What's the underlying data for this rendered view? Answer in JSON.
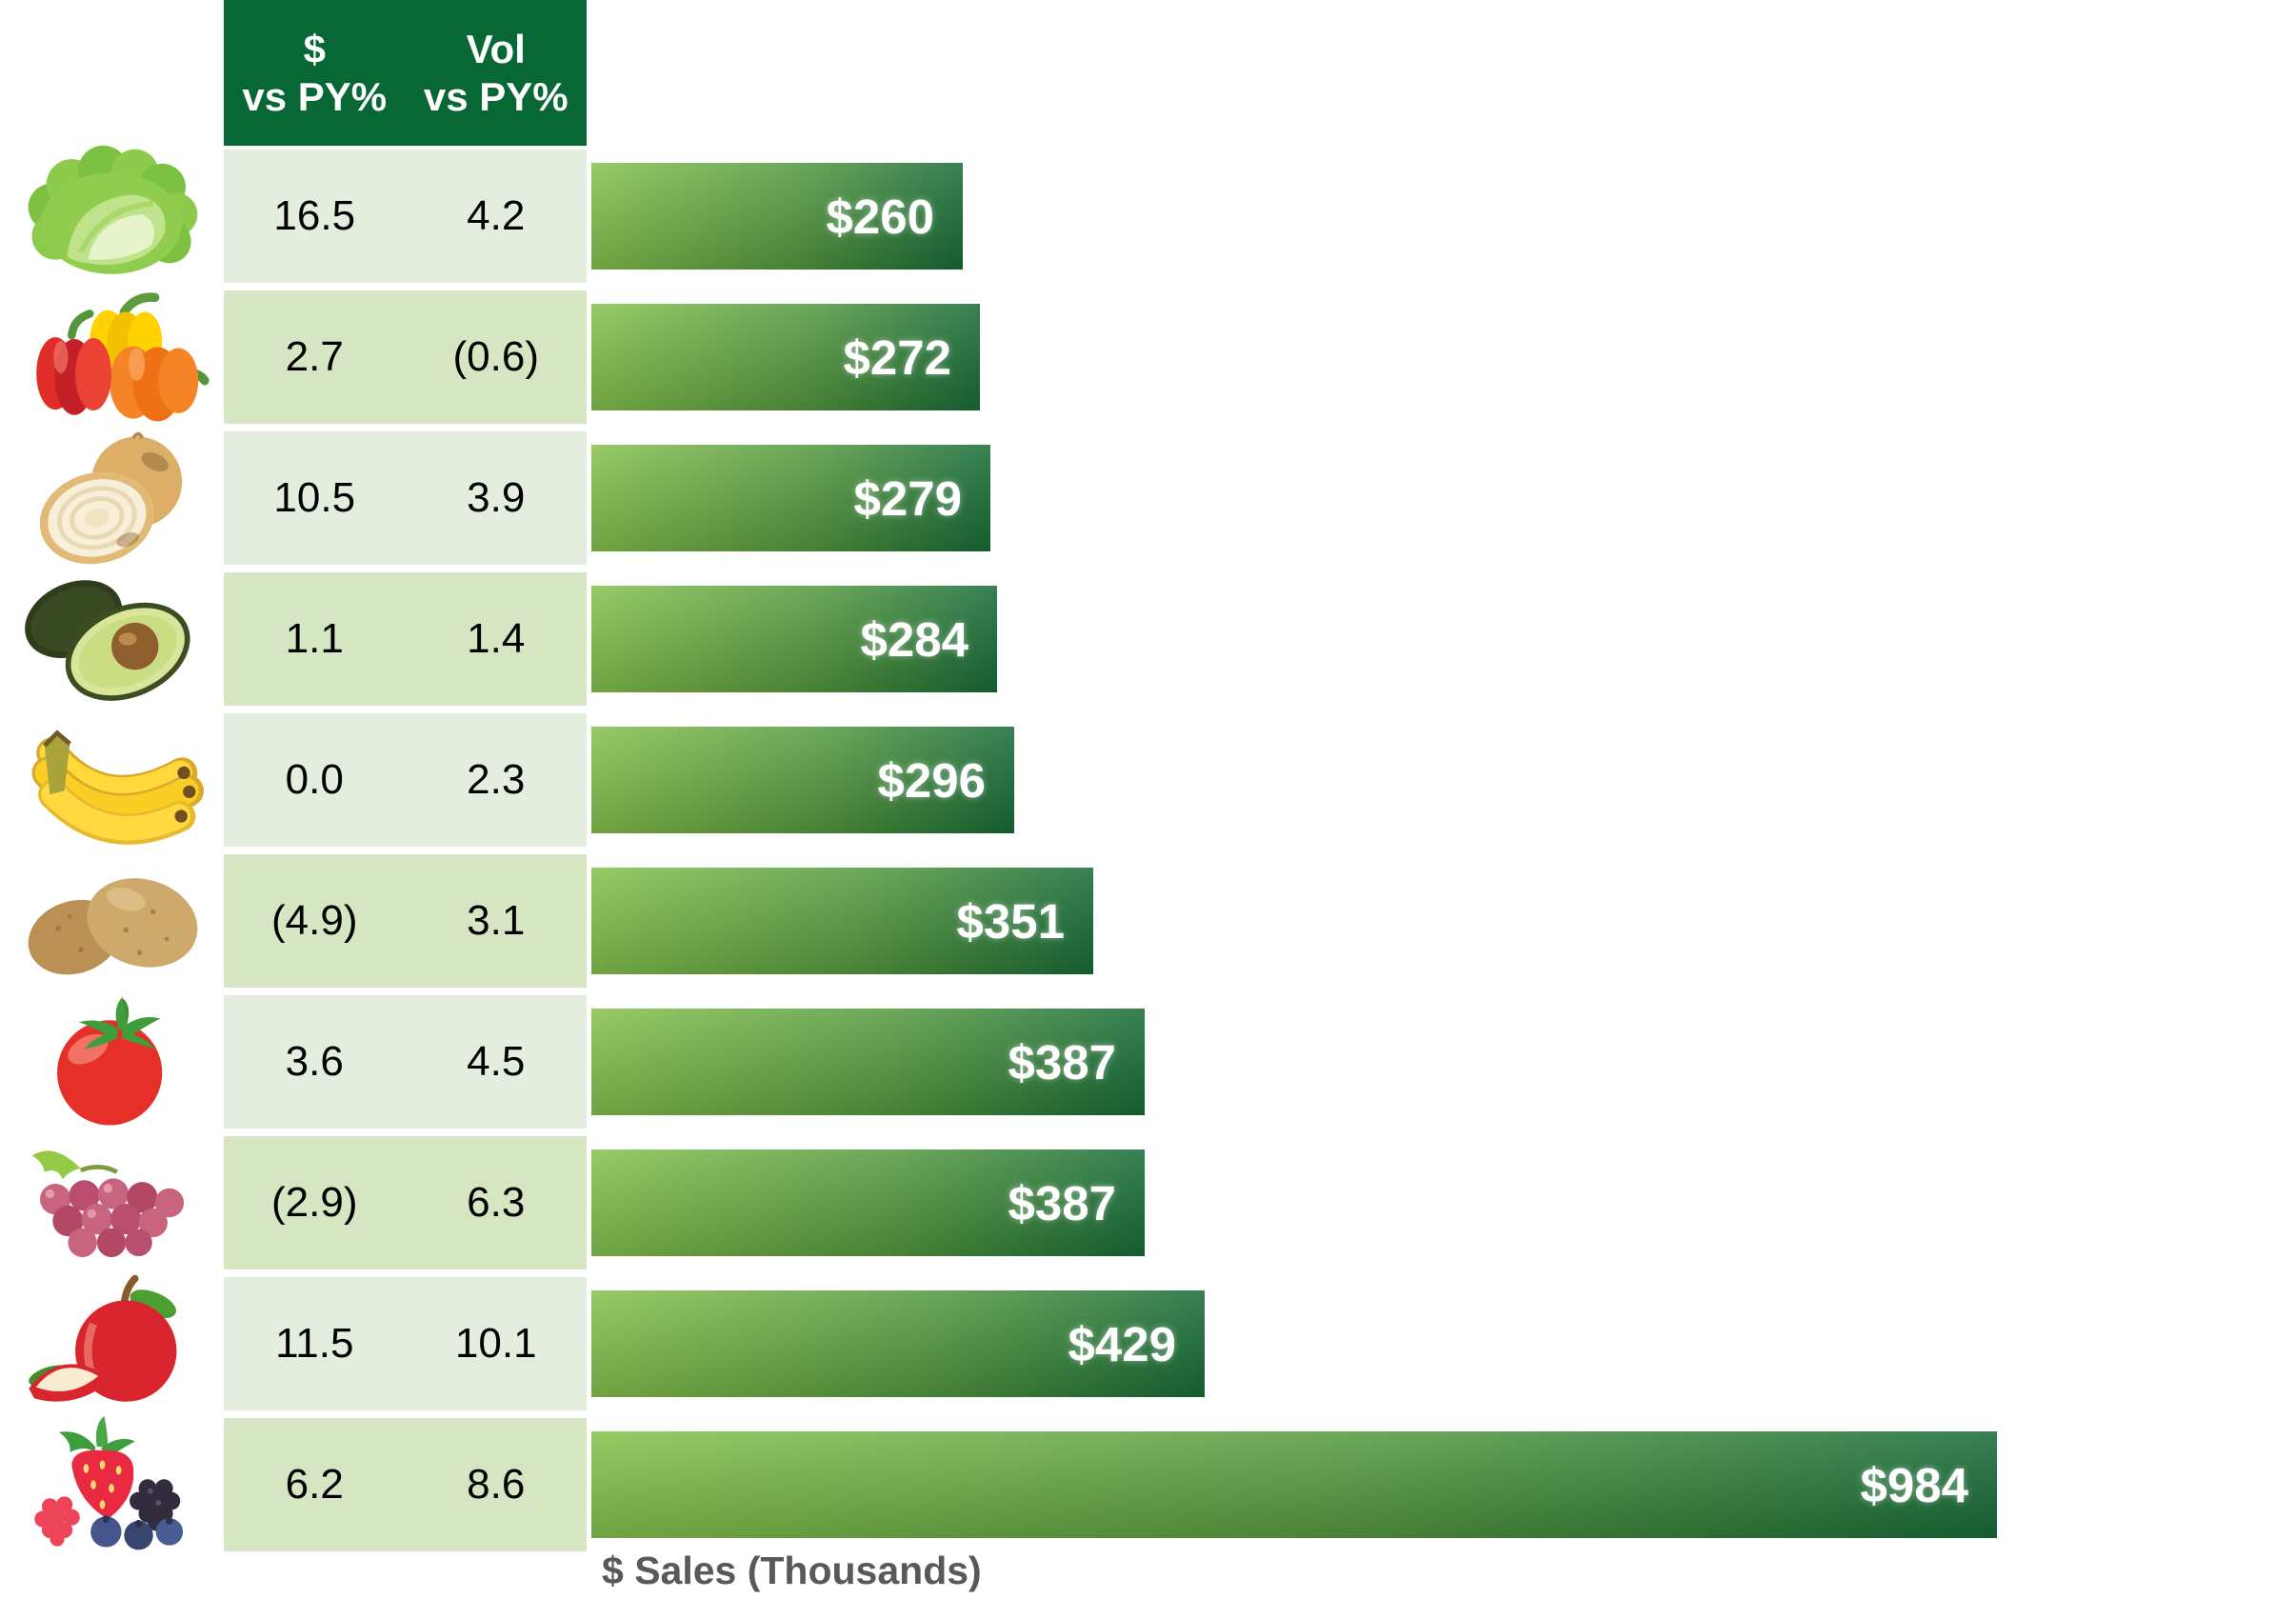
{
  "header": {
    "col1_line1": "$",
    "col1_line2": "vs PY%",
    "col2_line1": "Vol",
    "col2_line2": "vs PY%"
  },
  "axis": {
    "xlabel": "$ Sales (Thousands)"
  },
  "rows": [
    {
      "item": "lettuce",
      "icon": "lettuce-icon",
      "dollar_vs_py": "16.5",
      "vol_vs_py": "4.2",
      "sales": 260,
      "sales_label": "$260"
    },
    {
      "item": "bell-peppers",
      "icon": "bell-peppers-icon",
      "dollar_vs_py": "2.7",
      "vol_vs_py": "(0.6)",
      "sales": 272,
      "sales_label": "$272"
    },
    {
      "item": "onion",
      "icon": "onion-icon",
      "dollar_vs_py": "10.5",
      "vol_vs_py": "3.9",
      "sales": 279,
      "sales_label": "$279"
    },
    {
      "item": "avocado",
      "icon": "avocado-icon",
      "dollar_vs_py": "1.1",
      "vol_vs_py": "1.4",
      "sales": 284,
      "sales_label": "$284"
    },
    {
      "item": "bananas",
      "icon": "bananas-icon",
      "dollar_vs_py": "0.0",
      "vol_vs_py": "2.3",
      "sales": 296,
      "sales_label": "$296"
    },
    {
      "item": "potatoes",
      "icon": "potatoes-icon",
      "dollar_vs_py": "(4.9)",
      "vol_vs_py": "3.1",
      "sales": 351,
      "sales_label": "$351"
    },
    {
      "item": "tomato",
      "icon": "tomato-icon",
      "dollar_vs_py": "3.6",
      "vol_vs_py": "4.5",
      "sales": 387,
      "sales_label": "$387"
    },
    {
      "item": "grapes",
      "icon": "grapes-icon",
      "dollar_vs_py": "(2.9)",
      "vol_vs_py": "6.3",
      "sales": 387,
      "sales_label": "$387"
    },
    {
      "item": "apple",
      "icon": "apple-icon",
      "dollar_vs_py": "11.5",
      "vol_vs_py": "10.1",
      "sales": 429,
      "sales_label": "$429"
    },
    {
      "item": "berries",
      "icon": "berries-icon",
      "dollar_vs_py": "6.2",
      "vol_vs_py": "8.6",
      "sales": 984,
      "sales_label": "$984"
    }
  ],
  "chart_data": {
    "type": "bar",
    "orientation": "horizontal",
    "categories": [
      "Lettuce",
      "Bell Peppers",
      "Onions",
      "Avocados",
      "Bananas",
      "Potatoes",
      "Tomatoes",
      "Grapes",
      "Apples",
      "Berries"
    ],
    "series": [
      {
        "name": "$ Sales (Thousands)",
        "values": [
          260,
          272,
          279,
          284,
          296,
          351,
          387,
          387,
          429,
          984
        ]
      },
      {
        "name": "$ vs PY%",
        "values": [
          16.5,
          2.7,
          10.5,
          1.1,
          0.0,
          -4.9,
          3.6,
          -2.9,
          11.5,
          6.2
        ]
      },
      {
        "name": "Vol vs PY%",
        "values": [
          4.2,
          -0.6,
          3.9,
          1.4,
          2.3,
          3.1,
          4.5,
          6.3,
          10.1,
          8.6
        ]
      }
    ],
    "bar_labels": [
      "$260",
      "$272",
      "$279",
      "$284",
      "$296",
      "$351",
      "$387",
      "$387",
      "$429",
      "$984"
    ],
    "xlabel": "$ Sales (Thousands)",
    "xlim": [
      0,
      1000
    ],
    "grid": false,
    "legend": false,
    "notes": "Negative percentages shown in parentheses; sorted ascending by sales"
  },
  "colors": {
    "header_bg": "#076735",
    "header_text": "#ffffff",
    "row_odd_bg": "#e4eede",
    "row_even_bg": "#d6e5c2",
    "bar_gradient_start": "#85c24d",
    "bar_gradient_end": "#176c37",
    "bar_label_text": "#ffffff",
    "axis_label_text": "#58595b"
  }
}
